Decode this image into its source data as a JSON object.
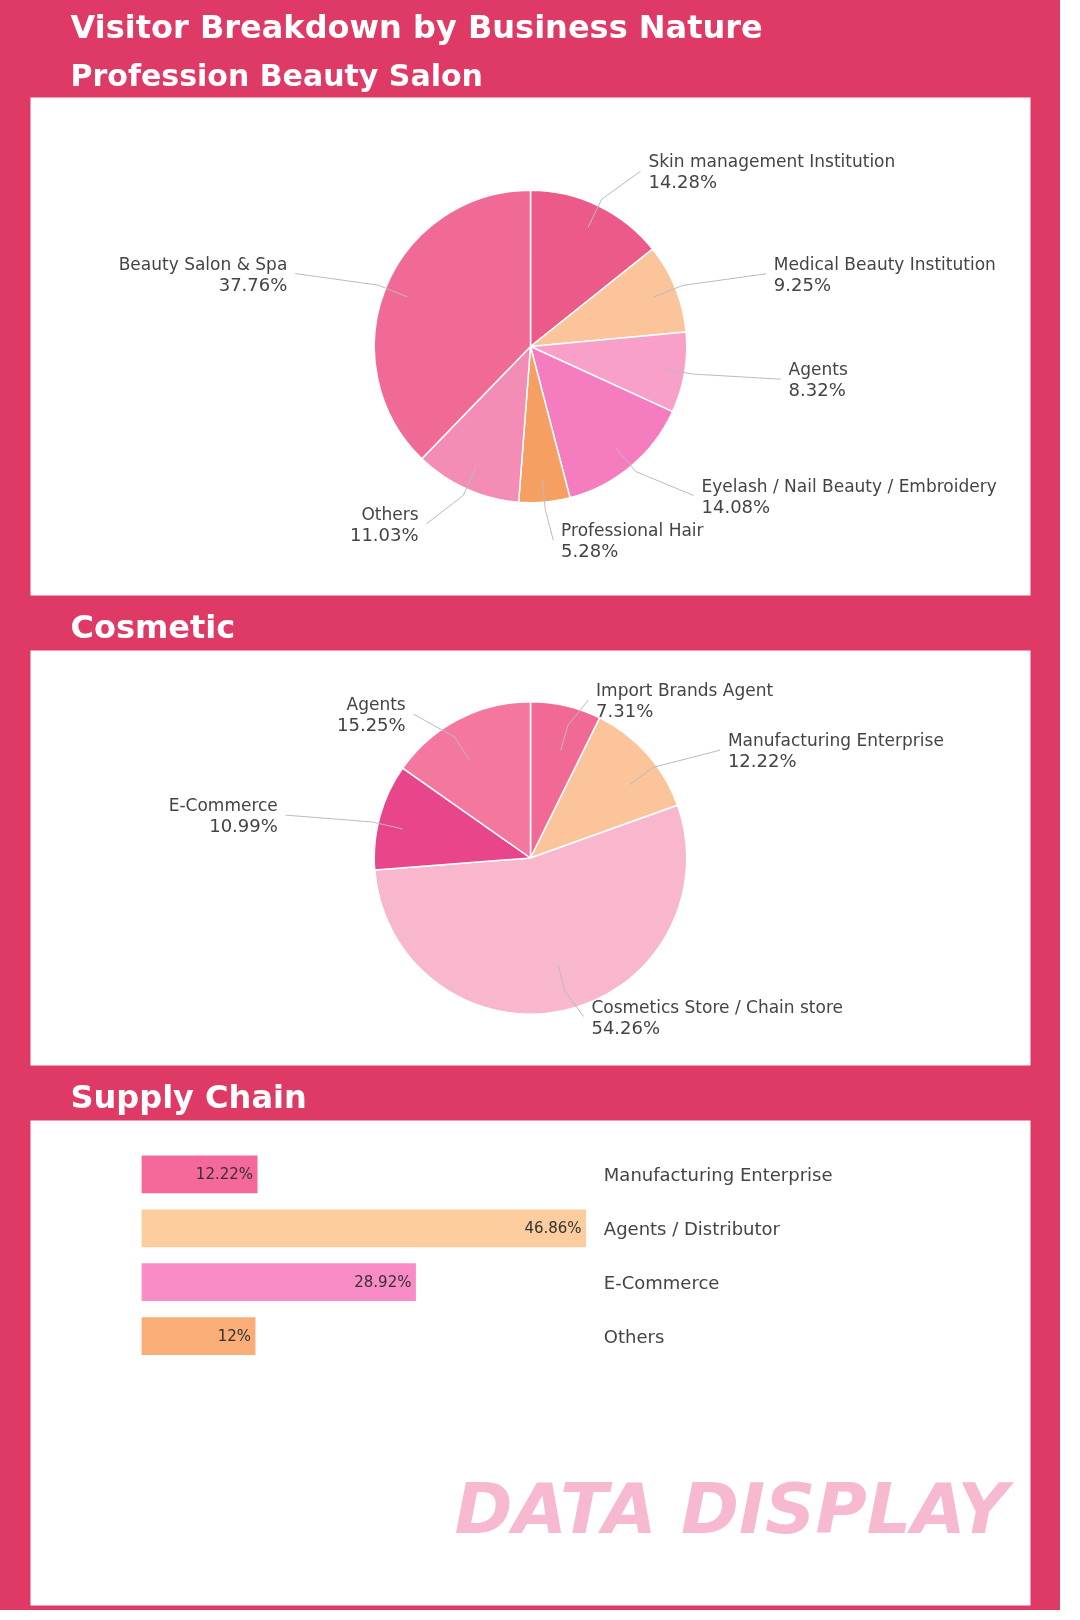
{
  "chart_data": [
    {
      "type": "pie",
      "title": "Visitor Breakdown by Business Nature",
      "subtitle": "Profession Beauty Salon",
      "categories": [
        "Skin management Institution",
        "Medical Beauty Institution",
        "Agents",
        "Eyelash / Nail Beauty / Embroidery",
        "Professional Hair",
        "Others",
        "Beauty Salon & Spa"
      ],
      "values": [
        14.28,
        9.25,
        8.32,
        14.08,
        5.28,
        11.03,
        37.76
      ],
      "value_labels": [
        "14.28%",
        "9.25%",
        "8.32%",
        "14.08%",
        "5.28%",
        "11.03%",
        "37.76%"
      ],
      "colors": [
        "#ec5a8a",
        "#fbc49a",
        "#f9a0c8",
        "#f57cbf",
        "#f5a062",
        "#f38db5",
        "#f06a95"
      ]
    },
    {
      "type": "pie",
      "title": "Cosmetic",
      "categories": [
        "Import Brands Agent",
        "Manufacturing Enterprise",
        "Cosmetics Store / Chain store",
        "E-Commerce",
        "Agents"
      ],
      "values": [
        7.31,
        12.22,
        54.26,
        10.99,
        15.25
      ],
      "value_labels": [
        "7.31%",
        "12.22%",
        "54.26%",
        "10.99%",
        "15.25%"
      ],
      "colors": [
        "#f06a95",
        "#fbc49a",
        "#f8b7cc",
        "#e8458a",
        "#f4779e"
      ]
    },
    {
      "type": "bar",
      "orientation": "horizontal",
      "title": "Supply Chain",
      "categories": [
        "Manufacturing Enterprise",
        "Agents / Distributor",
        "E-Commerce",
        "Others"
      ],
      "values": [
        12.22,
        46.86,
        28.92,
        12
      ],
      "value_labels": [
        "12.22%",
        "46.86%",
        "28.92%",
        "12%"
      ],
      "colors": [
        "#f5689a",
        "#fdcc9f",
        "#f98bc6",
        "#fbad78"
      ],
      "annotations": [
        "DATA DISPLAY"
      ]
    }
  ]
}
